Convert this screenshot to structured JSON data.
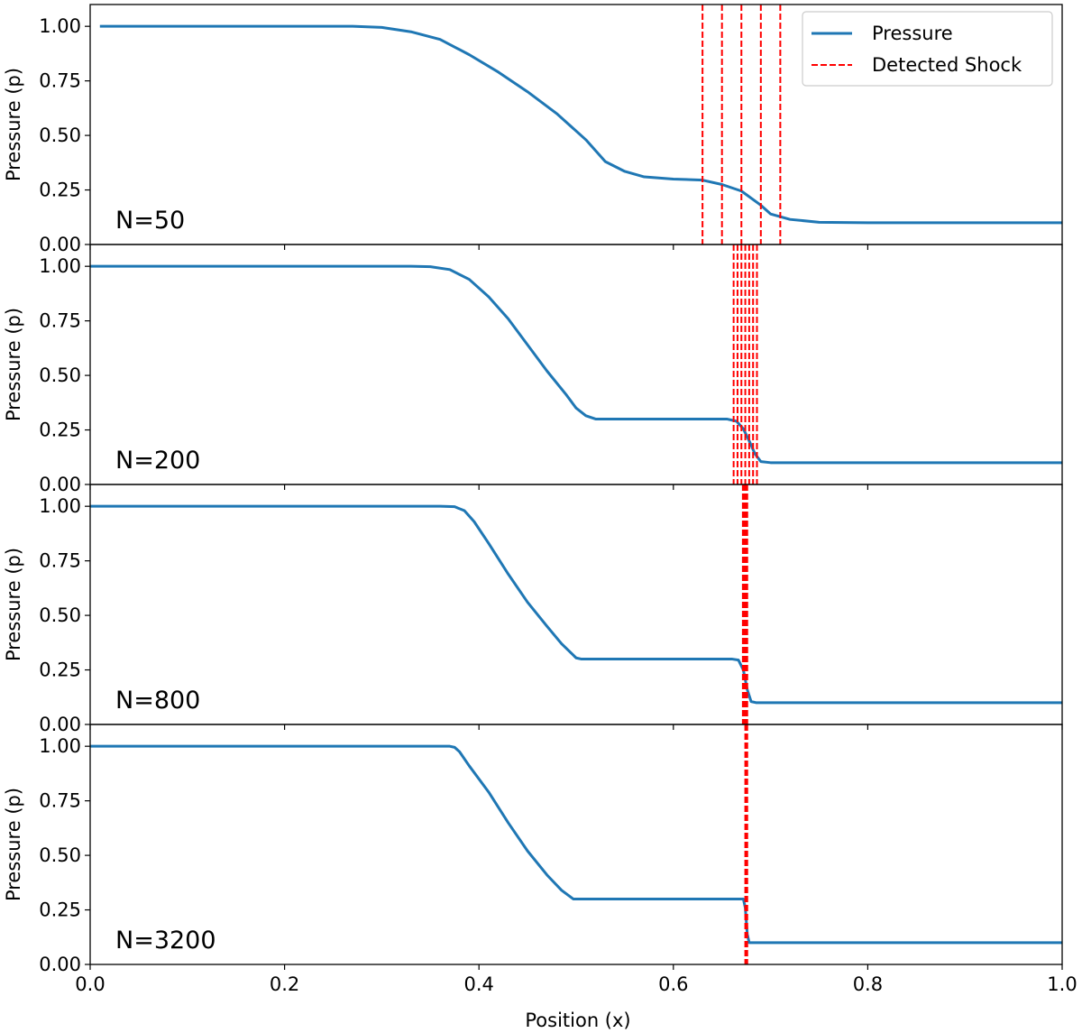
{
  "chart_data": {
    "type": "line",
    "xlabel": "Position (x)",
    "ylabel": "Pressure (p)",
    "xlim": [
      0.0,
      1.0
    ],
    "ylim": [
      0.0,
      1.1
    ],
    "x_ticks": [
      "0.0",
      "0.2",
      "0.4",
      "0.6",
      "0.8",
      "1.0"
    ],
    "y_ticks": [
      "0.00",
      "0.25",
      "0.50",
      "0.75",
      "1.00"
    ],
    "legend": {
      "placement": "top-right",
      "entries": [
        {
          "label": "Pressure",
          "style": "solid",
          "color": "#1f77b4"
        },
        {
          "label": "Detected Shock",
          "style": "dashed",
          "color": "#ff0000"
        }
      ]
    },
    "colors": {
      "pressure": "#1f77b4",
      "shock": "#ff0000"
    },
    "panels": [
      {
        "label": "N=50",
        "series": [
          {
            "name": "Pressure",
            "points": [
              [
                0.01,
                1.0
              ],
              [
                0.27,
                1.0
              ],
              [
                0.3,
                0.995
              ],
              [
                0.33,
                0.975
              ],
              [
                0.36,
                0.94
              ],
              [
                0.39,
                0.87
              ],
              [
                0.42,
                0.79
              ],
              [
                0.45,
                0.7
              ],
              [
                0.48,
                0.6
              ],
              [
                0.51,
                0.48
              ],
              [
                0.53,
                0.38
              ],
              [
                0.55,
                0.335
              ],
              [
                0.57,
                0.31
              ],
              [
                0.6,
                0.3
              ],
              [
                0.63,
                0.295
              ],
              [
                0.65,
                0.275
              ],
              [
                0.67,
                0.245
              ],
              [
                0.69,
                0.18
              ],
              [
                0.7,
                0.14
              ],
              [
                0.72,
                0.115
              ],
              [
                0.75,
                0.102
              ],
              [
                0.8,
                0.1
              ],
              [
                1.0,
                0.1
              ]
            ]
          }
        ],
        "shock_x": [
          0.63,
          0.65,
          0.67,
          0.69,
          0.71
        ]
      },
      {
        "label": "N=200",
        "series": [
          {
            "name": "Pressure",
            "points": [
              [
                0.0,
                1.0
              ],
              [
                0.33,
                1.0
              ],
              [
                0.35,
                0.998
              ],
              [
                0.37,
                0.985
              ],
              [
                0.39,
                0.94
              ],
              [
                0.41,
                0.86
              ],
              [
                0.43,
                0.76
              ],
              [
                0.45,
                0.64
              ],
              [
                0.47,
                0.52
              ],
              [
                0.49,
                0.41
              ],
              [
                0.5,
                0.35
              ],
              [
                0.51,
                0.315
              ],
              [
                0.52,
                0.3
              ],
              [
                0.6,
                0.3
              ],
              [
                0.655,
                0.3
              ],
              [
                0.665,
                0.29
              ],
              [
                0.672,
                0.255
              ],
              [
                0.678,
                0.2
              ],
              [
                0.684,
                0.14
              ],
              [
                0.69,
                0.105
              ],
              [
                0.7,
                0.1
              ],
              [
                1.0,
                0.1
              ]
            ]
          }
        ],
        "shock_x": [
          0.662,
          0.666,
          0.67,
          0.674,
          0.678,
          0.682,
          0.686
        ]
      },
      {
        "label": "N=800",
        "series": [
          {
            "name": "Pressure",
            "points": [
              [
                0.0,
                1.0
              ],
              [
                0.36,
                1.0
              ],
              [
                0.375,
                0.998
              ],
              [
                0.385,
                0.98
              ],
              [
                0.395,
                0.93
              ],
              [
                0.41,
                0.83
              ],
              [
                0.43,
                0.69
              ],
              [
                0.45,
                0.56
              ],
              [
                0.47,
                0.45
              ],
              [
                0.485,
                0.37
              ],
              [
                0.5,
                0.305
              ],
              [
                0.505,
                0.3
              ],
              [
                0.66,
                0.3
              ],
              [
                0.667,
                0.295
              ],
              [
                0.672,
                0.25
              ],
              [
                0.676,
                0.16
              ],
              [
                0.68,
                0.105
              ],
              [
                0.685,
                0.1
              ],
              [
                1.0,
                0.1
              ]
            ]
          }
        ],
        "shock_x": [
          0.6715,
          0.672,
          0.6725,
          0.673,
          0.6735,
          0.674,
          0.6745,
          0.675,
          0.6755,
          0.676
        ]
      },
      {
        "label": "N=3200",
        "series": [
          {
            "name": "Pressure",
            "points": [
              [
                0.0,
                1.0
              ],
              [
                0.37,
                1.0
              ],
              [
                0.375,
                0.995
              ],
              [
                0.38,
                0.975
              ],
              [
                0.39,
                0.91
              ],
              [
                0.41,
                0.79
              ],
              [
                0.43,
                0.65
              ],
              [
                0.45,
                0.52
              ],
              [
                0.47,
                0.41
              ],
              [
                0.485,
                0.34
              ],
              [
                0.497,
                0.3
              ],
              [
                0.5,
                0.3
              ],
              [
                0.672,
                0.3
              ],
              [
                0.674,
                0.26
              ],
              [
                0.676,
                0.14
              ],
              [
                0.678,
                0.1
              ],
              [
                0.68,
                0.1
              ],
              [
                1.0,
                0.1
              ]
            ]
          }
        ],
        "shock_x": [
          0.674,
          0.675,
          0.676
        ]
      }
    ]
  }
}
